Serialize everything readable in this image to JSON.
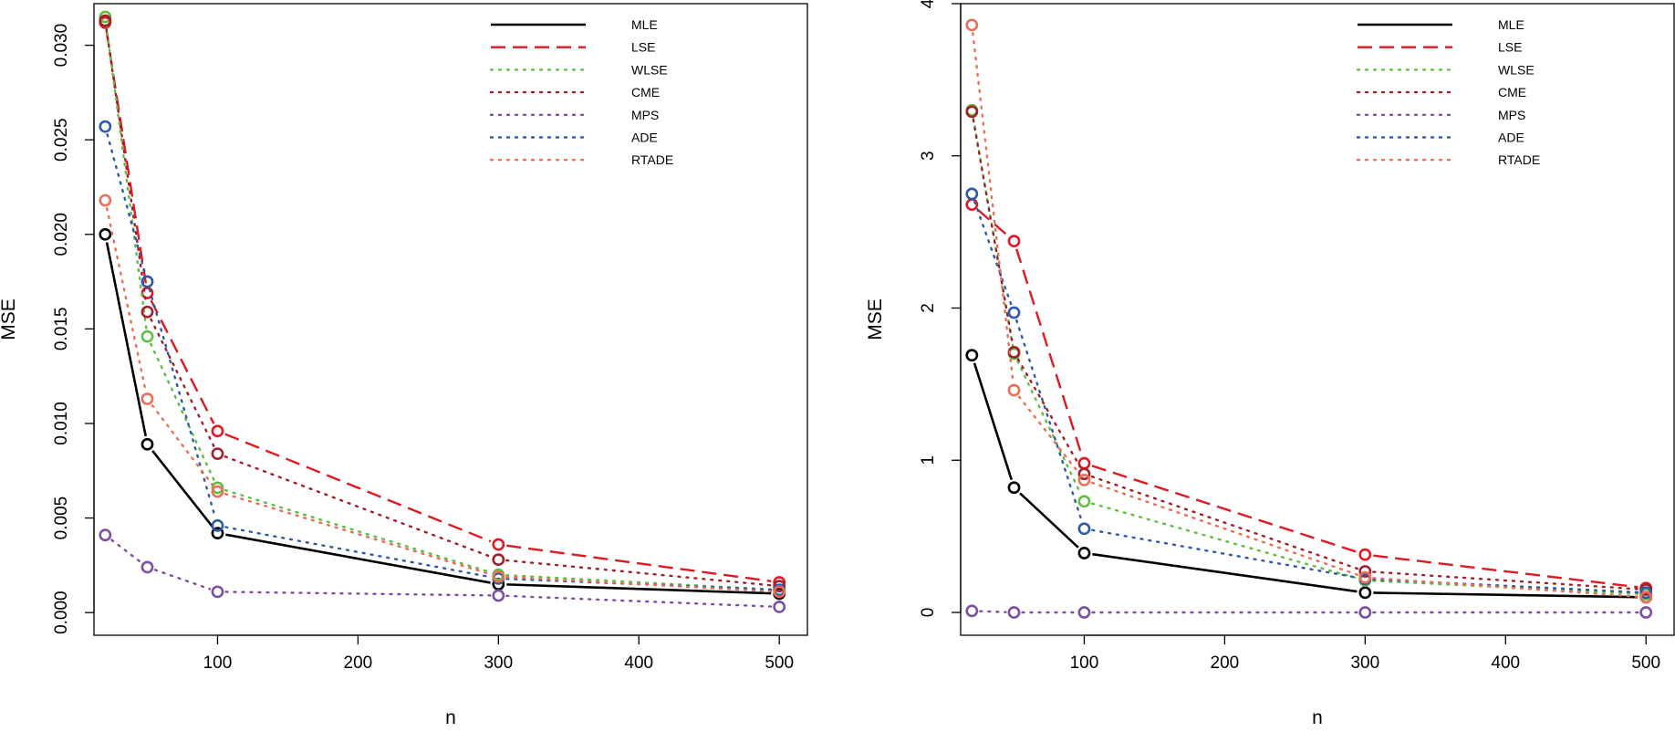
{
  "chart_data": [
    {
      "type": "line",
      "xlabel": "n",
      "ylabel": "MSE",
      "xlim": [
        12,
        520
      ],
      "ylim": [
        -0.0012,
        0.0322
      ],
      "xticks": [
        100,
        200,
        300,
        400,
        500
      ],
      "xtick_labels": [
        "100",
        "200",
        "300",
        "400",
        "500"
      ],
      "yticks": [
        0,
        0.005,
        0.01,
        0.015,
        0.02,
        0.025,
        0.03
      ],
      "ytick_labels": [
        "0.000",
        "0.005",
        "0.010",
        "0.015",
        "0.020",
        "0.025",
        "0.030"
      ],
      "x": [
        20,
        50,
        100,
        300,
        500
      ],
      "legend_position": "top-right",
      "grid": false,
      "series": [
        {
          "name": "MLE",
          "color": "#000000",
          "linestyle": "solid",
          "values": [
            0.02,
            0.0089,
            0.0042,
            0.0015,
            0.001
          ]
        },
        {
          "name": "LSE",
          "color": "#DF1A22",
          "linestyle": "dashed",
          "values": [
            0.0312,
            0.0169,
            0.0096,
            0.0036,
            0.0016
          ]
        },
        {
          "name": "WLSE",
          "color": "#61BE45",
          "linestyle": "dotted",
          "values": [
            0.0315,
            0.0146,
            0.0066,
            0.002,
            0.0012
          ]
        },
        {
          "name": "CME",
          "color": "#A1202A",
          "linestyle": "dotted",
          "values": [
            0.0313,
            0.0159,
            0.0084,
            0.0028,
            0.0014
          ]
        },
        {
          "name": "MPS",
          "color": "#7D4FA4",
          "linestyle": "dotted",
          "values": [
            0.0041,
            0.0024,
            0.0011,
            0.0009,
            0.0003
          ]
        },
        {
          "name": "ADE",
          "color": "#2D5AA9",
          "linestyle": "dotted",
          "values": [
            0.0257,
            0.0175,
            0.0046,
            0.0018,
            0.0012
          ]
        },
        {
          "name": "RTADE",
          "color": "#EC6E57",
          "linestyle": "dotted",
          "values": [
            0.0218,
            0.0113,
            0.0064,
            0.0019,
            0.0011
          ]
        }
      ]
    },
    {
      "type": "line",
      "xlabel": "n",
      "ylabel": "MSE",
      "xlim": [
        12,
        520
      ],
      "ylim": [
        -0.15,
        4.0
      ],
      "xticks": [
        100,
        200,
        300,
        400,
        500
      ],
      "xtick_labels": [
        "100",
        "200",
        "300",
        "400",
        "500"
      ],
      "yticks": [
        0,
        1,
        2,
        3,
        4
      ],
      "ytick_labels": [
        "0",
        "1",
        "2",
        "3",
        "4"
      ],
      "x": [
        20,
        50,
        100,
        300,
        500
      ],
      "legend_position": "top-right",
      "grid": false,
      "series": [
        {
          "name": "MLE",
          "color": "#000000",
          "linestyle": "solid",
          "values": [
            1.69,
            0.82,
            0.39,
            0.13,
            0.1
          ]
        },
        {
          "name": "LSE",
          "color": "#DF1A22",
          "linestyle": "dashed",
          "values": [
            2.68,
            2.44,
            0.98,
            0.38,
            0.16
          ]
        },
        {
          "name": "WLSE",
          "color": "#61BE45",
          "linestyle": "dotted",
          "values": [
            3.3,
            1.7,
            0.73,
            0.21,
            0.12
          ]
        },
        {
          "name": "CME",
          "color": "#A1202A",
          "linestyle": "dotted",
          "values": [
            3.29,
            1.71,
            0.91,
            0.27,
            0.15
          ]
        },
        {
          "name": "MPS",
          "color": "#7D4FA4",
          "linestyle": "dotted",
          "values": [
            0.01,
            0.0,
            0.0,
            0.0,
            0.0
          ]
        },
        {
          "name": "ADE",
          "color": "#2D5AA9",
          "linestyle": "dotted",
          "values": [
            2.75,
            1.97,
            0.55,
            0.22,
            0.13
          ]
        },
        {
          "name": "RTADE",
          "color": "#EC6E57",
          "linestyle": "dotted",
          "values": [
            3.86,
            1.46,
            0.87,
            0.23,
            0.1
          ]
        }
      ]
    }
  ]
}
